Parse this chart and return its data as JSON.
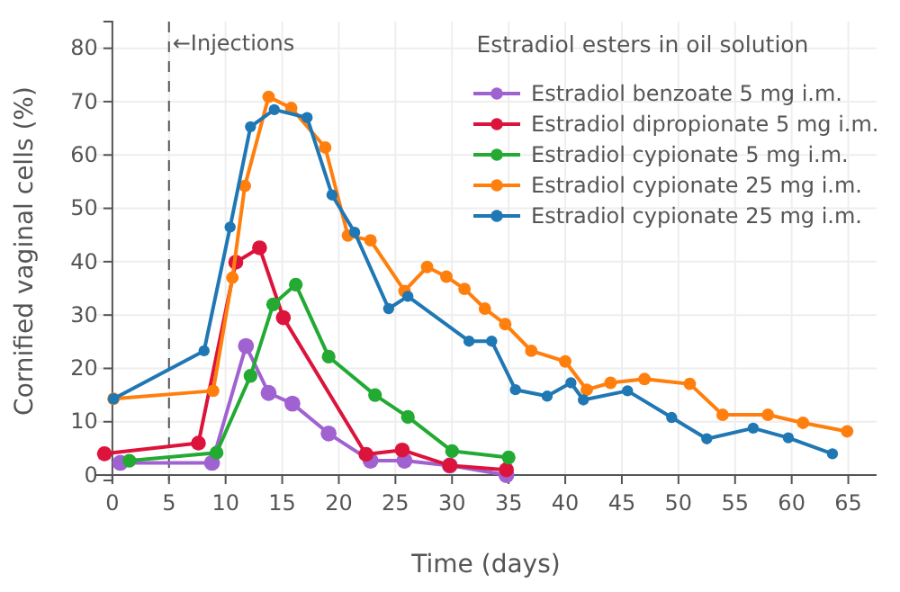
{
  "chart_data": {
    "type": "line",
    "xlabel": "Time (days)",
    "ylabel": "Cornified vaginal cells (%)",
    "legend_title": "Estradiol esters in oil solution",
    "xlim": [
      -1.5,
      67.5
    ],
    "ylim": [
      -1,
      85
    ],
    "xticks": [
      0,
      5,
      10,
      15,
      20,
      25,
      30,
      35,
      40,
      45,
      50,
      55,
      60,
      65
    ],
    "yticks": [
      0,
      10,
      20,
      30,
      40,
      50,
      60,
      70,
      80
    ],
    "grid": true,
    "legend": "top right",
    "marker": "circle",
    "line_style": "solid",
    "ref_lines": [
      {
        "axis": "x",
        "value": 5,
        "label": "←Injections",
        "line_style": "dashed",
        "color": "#555555"
      }
    ],
    "series": [
      {
        "name": "Estradiol benzoate 5 mg i.m.",
        "color": "#a062d0",
        "x": [
          0.7,
          8.8,
          11.8,
          13.8,
          15.9,
          19.1,
          22.8,
          25.8,
          29.8,
          34.8
        ],
        "values": [
          2.3,
          2.3,
          24.2,
          15.4,
          13.4,
          7.8,
          2.7,
          2.7,
          1.8,
          0
        ]
      },
      {
        "name": "Estradiol dipropionate 5 mg i.m.",
        "color": "#dc143c",
        "x": [
          -0.7,
          7.6,
          10.9,
          13.0,
          15.1,
          22.4,
          25.6,
          29.8,
          34.8
        ],
        "values": [
          4.0,
          6.0,
          39.9,
          42.6,
          29.5,
          3.9,
          4.7,
          1.8,
          1.0
        ]
      },
      {
        "name": "Estradiol cypionate 5 mg i.m.",
        "color": "#22aa33",
        "x": [
          1.5,
          9.2,
          12.2,
          14.2,
          16.2,
          19.1,
          23.2,
          26.1,
          30.0,
          35.0
        ],
        "values": [
          2.7,
          4.2,
          18.6,
          32.0,
          35.7,
          22.2,
          15.0,
          10.9,
          4.5,
          3.3
        ]
      },
      {
        "name": "Estradiol cypionate 25 mg i.m.",
        "color": "#ff7f0e",
        "x": [
          0.1,
          8.9,
          10.6,
          11.7,
          13.8,
          15.8,
          18.8,
          20.8,
          22.8,
          25.8,
          27.8,
          29.5,
          31.1,
          32.9,
          34.7,
          37.0,
          40.0,
          41.9,
          44.0,
          47.0,
          51.0,
          53.9,
          57.9,
          61.0,
          64.9
        ],
        "values": [
          14.3,
          15.8,
          37.0,
          54.2,
          70.9,
          68.8,
          61.4,
          44.9,
          44.0,
          34.5,
          39.0,
          37.2,
          34.9,
          31.2,
          28.3,
          23.3,
          21.3,
          16.0,
          17.3,
          18.0,
          17.1,
          11.3,
          11.3,
          9.8,
          8.2
        ]
      },
      {
        "name": "Estradiol cypionate 25 mg i.m.",
        "color": "#1f77b4",
        "x": [
          0.1,
          8.1,
          10.4,
          12.2,
          14.3,
          17.2,
          19.4,
          21.4,
          24.4,
          26.1,
          31.5,
          33.5,
          35.6,
          38.4,
          40.5,
          41.6,
          45.5,
          49.4,
          52.5,
          56.6,
          59.7,
          63.6
        ],
        "values": [
          14.3,
          23.3,
          46.5,
          65.3,
          68.5,
          67.0,
          52.5,
          45.5,
          31.2,
          33.5,
          25.1,
          25.1,
          16.0,
          14.8,
          17.3,
          14.1,
          15.8,
          10.8,
          6.8,
          8.8,
          7.0,
          4.0
        ]
      }
    ]
  }
}
